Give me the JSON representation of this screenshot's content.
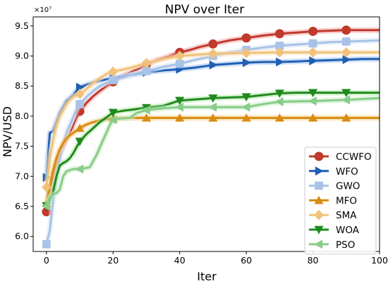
{
  "chart_data": {
    "type": "line",
    "title": "NPV over Iter",
    "xlabel": "Iter",
    "ylabel": "NPV/USD",
    "y_multiplier_label": "×10⁷",
    "xlim": [
      -4,
      100
    ],
    "ylim": [
      5.75,
      9.65
    ],
    "xticks": [
      0,
      20,
      40,
      60,
      80,
      100
    ],
    "yticks": [
      6.0,
      6.5,
      7.0,
      7.5,
      8.0,
      8.5,
      9.0,
      9.5
    ],
    "ytick_labels": [
      "6.0",
      "6.5",
      "7.0",
      "7.5",
      "8.0",
      "8.5",
      "9.0",
      "9.5"
    ],
    "grid": false,
    "legend_position": "lower-right",
    "marker_every": 10,
    "series": [
      {
        "name": "CCWFO",
        "color": "#c0392b",
        "glow": "#f3a6a6",
        "marker": "circle",
        "points": [
          [
            0,
            6.41
          ],
          [
            1,
            6.78
          ],
          [
            2,
            7.0
          ],
          [
            3,
            7.2
          ],
          [
            4,
            7.38
          ],
          [
            5,
            7.5
          ],
          [
            6,
            7.62
          ],
          [
            7,
            7.72
          ],
          [
            8,
            7.85
          ],
          [
            9,
            7.98
          ],
          [
            10,
            8.08
          ],
          [
            12,
            8.22
          ],
          [
            14,
            8.33
          ],
          [
            16,
            8.42
          ],
          [
            18,
            8.5
          ],
          [
            20,
            8.57
          ],
          [
            22,
            8.64
          ],
          [
            25,
            8.72
          ],
          [
            28,
            8.8
          ],
          [
            30,
            8.86
          ],
          [
            33,
            8.93
          ],
          [
            36,
            8.98
          ],
          [
            40,
            9.06
          ],
          [
            43,
            9.1
          ],
          [
            46,
            9.15
          ],
          [
            50,
            9.2
          ],
          [
            55,
            9.26
          ],
          [
            60,
            9.3
          ],
          [
            65,
            9.34
          ],
          [
            70,
            9.37
          ],
          [
            75,
            9.39
          ],
          [
            80,
            9.41
          ],
          [
            85,
            9.42
          ],
          [
            90,
            9.43
          ],
          [
            95,
            9.43
          ],
          [
            100,
            9.43
          ]
        ]
      },
      {
        "name": "WFO",
        "color": "#1f5fb4",
        "glow": "#a8c4f0",
        "marker": "triangle-right",
        "points": [
          [
            0,
            6.98
          ],
          [
            1,
            7.72
          ],
          [
            2,
            7.75
          ],
          [
            3,
            7.9
          ],
          [
            4,
            8.05
          ],
          [
            5,
            8.15
          ],
          [
            6,
            8.25
          ],
          [
            7,
            8.3
          ],
          [
            8,
            8.35
          ],
          [
            9,
            8.42
          ],
          [
            10,
            8.48
          ],
          [
            12,
            8.52
          ],
          [
            14,
            8.56
          ],
          [
            16,
            8.59
          ],
          [
            18,
            8.61
          ],
          [
            20,
            8.63
          ],
          [
            25,
            8.68
          ],
          [
            30,
            8.73
          ],
          [
            35,
            8.76
          ],
          [
            40,
            8.78
          ],
          [
            45,
            8.81
          ],
          [
            50,
            8.85
          ],
          [
            55,
            8.87
          ],
          [
            60,
            8.89
          ],
          [
            65,
            8.9
          ],
          [
            70,
            8.9
          ],
          [
            75,
            8.91
          ],
          [
            80,
            8.92
          ],
          [
            85,
            8.93
          ],
          [
            90,
            8.94
          ],
          [
            95,
            8.95
          ],
          [
            100,
            8.95
          ]
        ]
      },
      {
        "name": "GWO",
        "color": "#a8c2e8",
        "glow": "#dbe6f6",
        "marker": "square",
        "points": [
          [
            0,
            5.87
          ],
          [
            1,
            6.1
          ],
          [
            2,
            6.6
          ],
          [
            3,
            7.0
          ],
          [
            4,
            7.3
          ],
          [
            5,
            7.55
          ],
          [
            6,
            7.72
          ],
          [
            7,
            7.85
          ],
          [
            8,
            7.98
          ],
          [
            9,
            8.1
          ],
          [
            10,
            8.2
          ],
          [
            12,
            8.32
          ],
          [
            14,
            8.42
          ],
          [
            16,
            8.5
          ],
          [
            18,
            8.55
          ],
          [
            20,
            8.6
          ],
          [
            25,
            8.68
          ],
          [
            30,
            8.75
          ],
          [
            35,
            8.82
          ],
          [
            40,
            8.87
          ],
          [
            45,
            8.94
          ],
          [
            50,
            9.0
          ],
          [
            55,
            9.06
          ],
          [
            60,
            9.1
          ],
          [
            65,
            9.14
          ],
          [
            70,
            9.17
          ],
          [
            75,
            9.19
          ],
          [
            80,
            9.21
          ],
          [
            85,
            9.23
          ],
          [
            90,
            9.24
          ],
          [
            95,
            9.25
          ],
          [
            100,
            9.26
          ]
        ]
      },
      {
        "name": "MFO",
        "color": "#d98c10",
        "glow": "#f5cf8e",
        "marker": "triangle-up",
        "points": [
          [
            0,
            6.55
          ],
          [
            1,
            6.85
          ],
          [
            2,
            7.1
          ],
          [
            3,
            7.3
          ],
          [
            4,
            7.45
          ],
          [
            5,
            7.55
          ],
          [
            6,
            7.63
          ],
          [
            7,
            7.68
          ],
          [
            8,
            7.72
          ],
          [
            9,
            7.76
          ],
          [
            10,
            7.8
          ],
          [
            12,
            7.86
          ],
          [
            14,
            7.9
          ],
          [
            16,
            7.93
          ],
          [
            18,
            7.95
          ],
          [
            20,
            7.96
          ],
          [
            25,
            7.97
          ],
          [
            30,
            7.97
          ],
          [
            40,
            7.97
          ],
          [
            50,
            7.97
          ],
          [
            60,
            7.97
          ],
          [
            70,
            7.97
          ],
          [
            80,
            7.97
          ],
          [
            90,
            7.97
          ],
          [
            100,
            7.97
          ]
        ]
      },
      {
        "name": "SMA",
        "color": "#f0c27b",
        "glow": "#fbe3bd",
        "marker": "diamond",
        "points": [
          [
            0,
            6.82
          ],
          [
            1,
            7.3
          ],
          [
            2,
            7.6
          ],
          [
            3,
            7.85
          ],
          [
            4,
            8.0
          ],
          [
            5,
            8.1
          ],
          [
            6,
            8.2
          ],
          [
            7,
            8.27
          ],
          [
            8,
            8.32
          ],
          [
            9,
            8.35
          ],
          [
            10,
            8.37
          ],
          [
            12,
            8.45
          ],
          [
            14,
            8.55
          ],
          [
            16,
            8.63
          ],
          [
            18,
            8.7
          ],
          [
            20,
            8.74
          ],
          [
            25,
            8.8
          ],
          [
            30,
            8.88
          ],
          [
            35,
            8.95
          ],
          [
            40,
            9.0
          ],
          [
            45,
            9.02
          ],
          [
            50,
            9.04
          ],
          [
            60,
            9.05
          ],
          [
            70,
            9.06
          ],
          [
            80,
            9.06
          ],
          [
            90,
            9.06
          ],
          [
            100,
            9.06
          ]
        ]
      },
      {
        "name": "WOA",
        "color": "#1e8a1e",
        "glow": "#b6e8a8",
        "marker": "triangle-down",
        "points": [
          [
            0,
            6.51
          ],
          [
            1,
            6.6
          ],
          [
            2,
            6.75
          ],
          [
            3,
            7.0
          ],
          [
            4,
            7.18
          ],
          [
            5,
            7.22
          ],
          [
            6,
            7.25
          ],
          [
            7,
            7.3
          ],
          [
            8,
            7.38
          ],
          [
            9,
            7.48
          ],
          [
            10,
            7.58
          ],
          [
            12,
            7.7
          ],
          [
            14,
            7.8
          ],
          [
            16,
            7.9
          ],
          [
            18,
            7.98
          ],
          [
            20,
            8.06
          ],
          [
            23,
            8.09
          ],
          [
            26,
            8.11
          ],
          [
            30,
            8.14
          ],
          [
            35,
            8.17
          ],
          [
            40,
            8.26
          ],
          [
            45,
            8.28
          ],
          [
            50,
            8.3
          ],
          [
            55,
            8.31
          ],
          [
            60,
            8.32
          ],
          [
            65,
            8.35
          ],
          [
            70,
            8.38
          ],
          [
            75,
            8.39
          ],
          [
            80,
            8.39
          ],
          [
            90,
            8.39
          ],
          [
            100,
            8.39
          ]
        ]
      },
      {
        "name": "PSO",
        "color": "#88cc88",
        "glow": "#c8ecc8",
        "marker": "triangle-left",
        "points": [
          [
            0,
            6.5
          ],
          [
            1,
            6.65
          ],
          [
            2,
            6.7
          ],
          [
            3,
            6.72
          ],
          [
            4,
            6.78
          ],
          [
            5,
            7.0
          ],
          [
            6,
            7.08
          ],
          [
            7,
            7.1
          ],
          [
            8,
            7.12
          ],
          [
            9,
            7.12
          ],
          [
            10,
            7.12
          ],
          [
            13,
            7.15
          ],
          [
            15,
            7.35
          ],
          [
            17,
            7.6
          ],
          [
            19,
            7.85
          ],
          [
            20,
            7.94
          ],
          [
            22,
            7.96
          ],
          [
            25,
            7.97
          ],
          [
            27,
            8.05
          ],
          [
            30,
            8.1
          ],
          [
            35,
            8.13
          ],
          [
            40,
            8.15
          ],
          [
            50,
            8.15
          ],
          [
            60,
            8.15
          ],
          [
            65,
            8.2
          ],
          [
            70,
            8.24
          ],
          [
            80,
            8.25
          ],
          [
            90,
            8.27
          ],
          [
            100,
            8.3
          ]
        ]
      }
    ]
  }
}
